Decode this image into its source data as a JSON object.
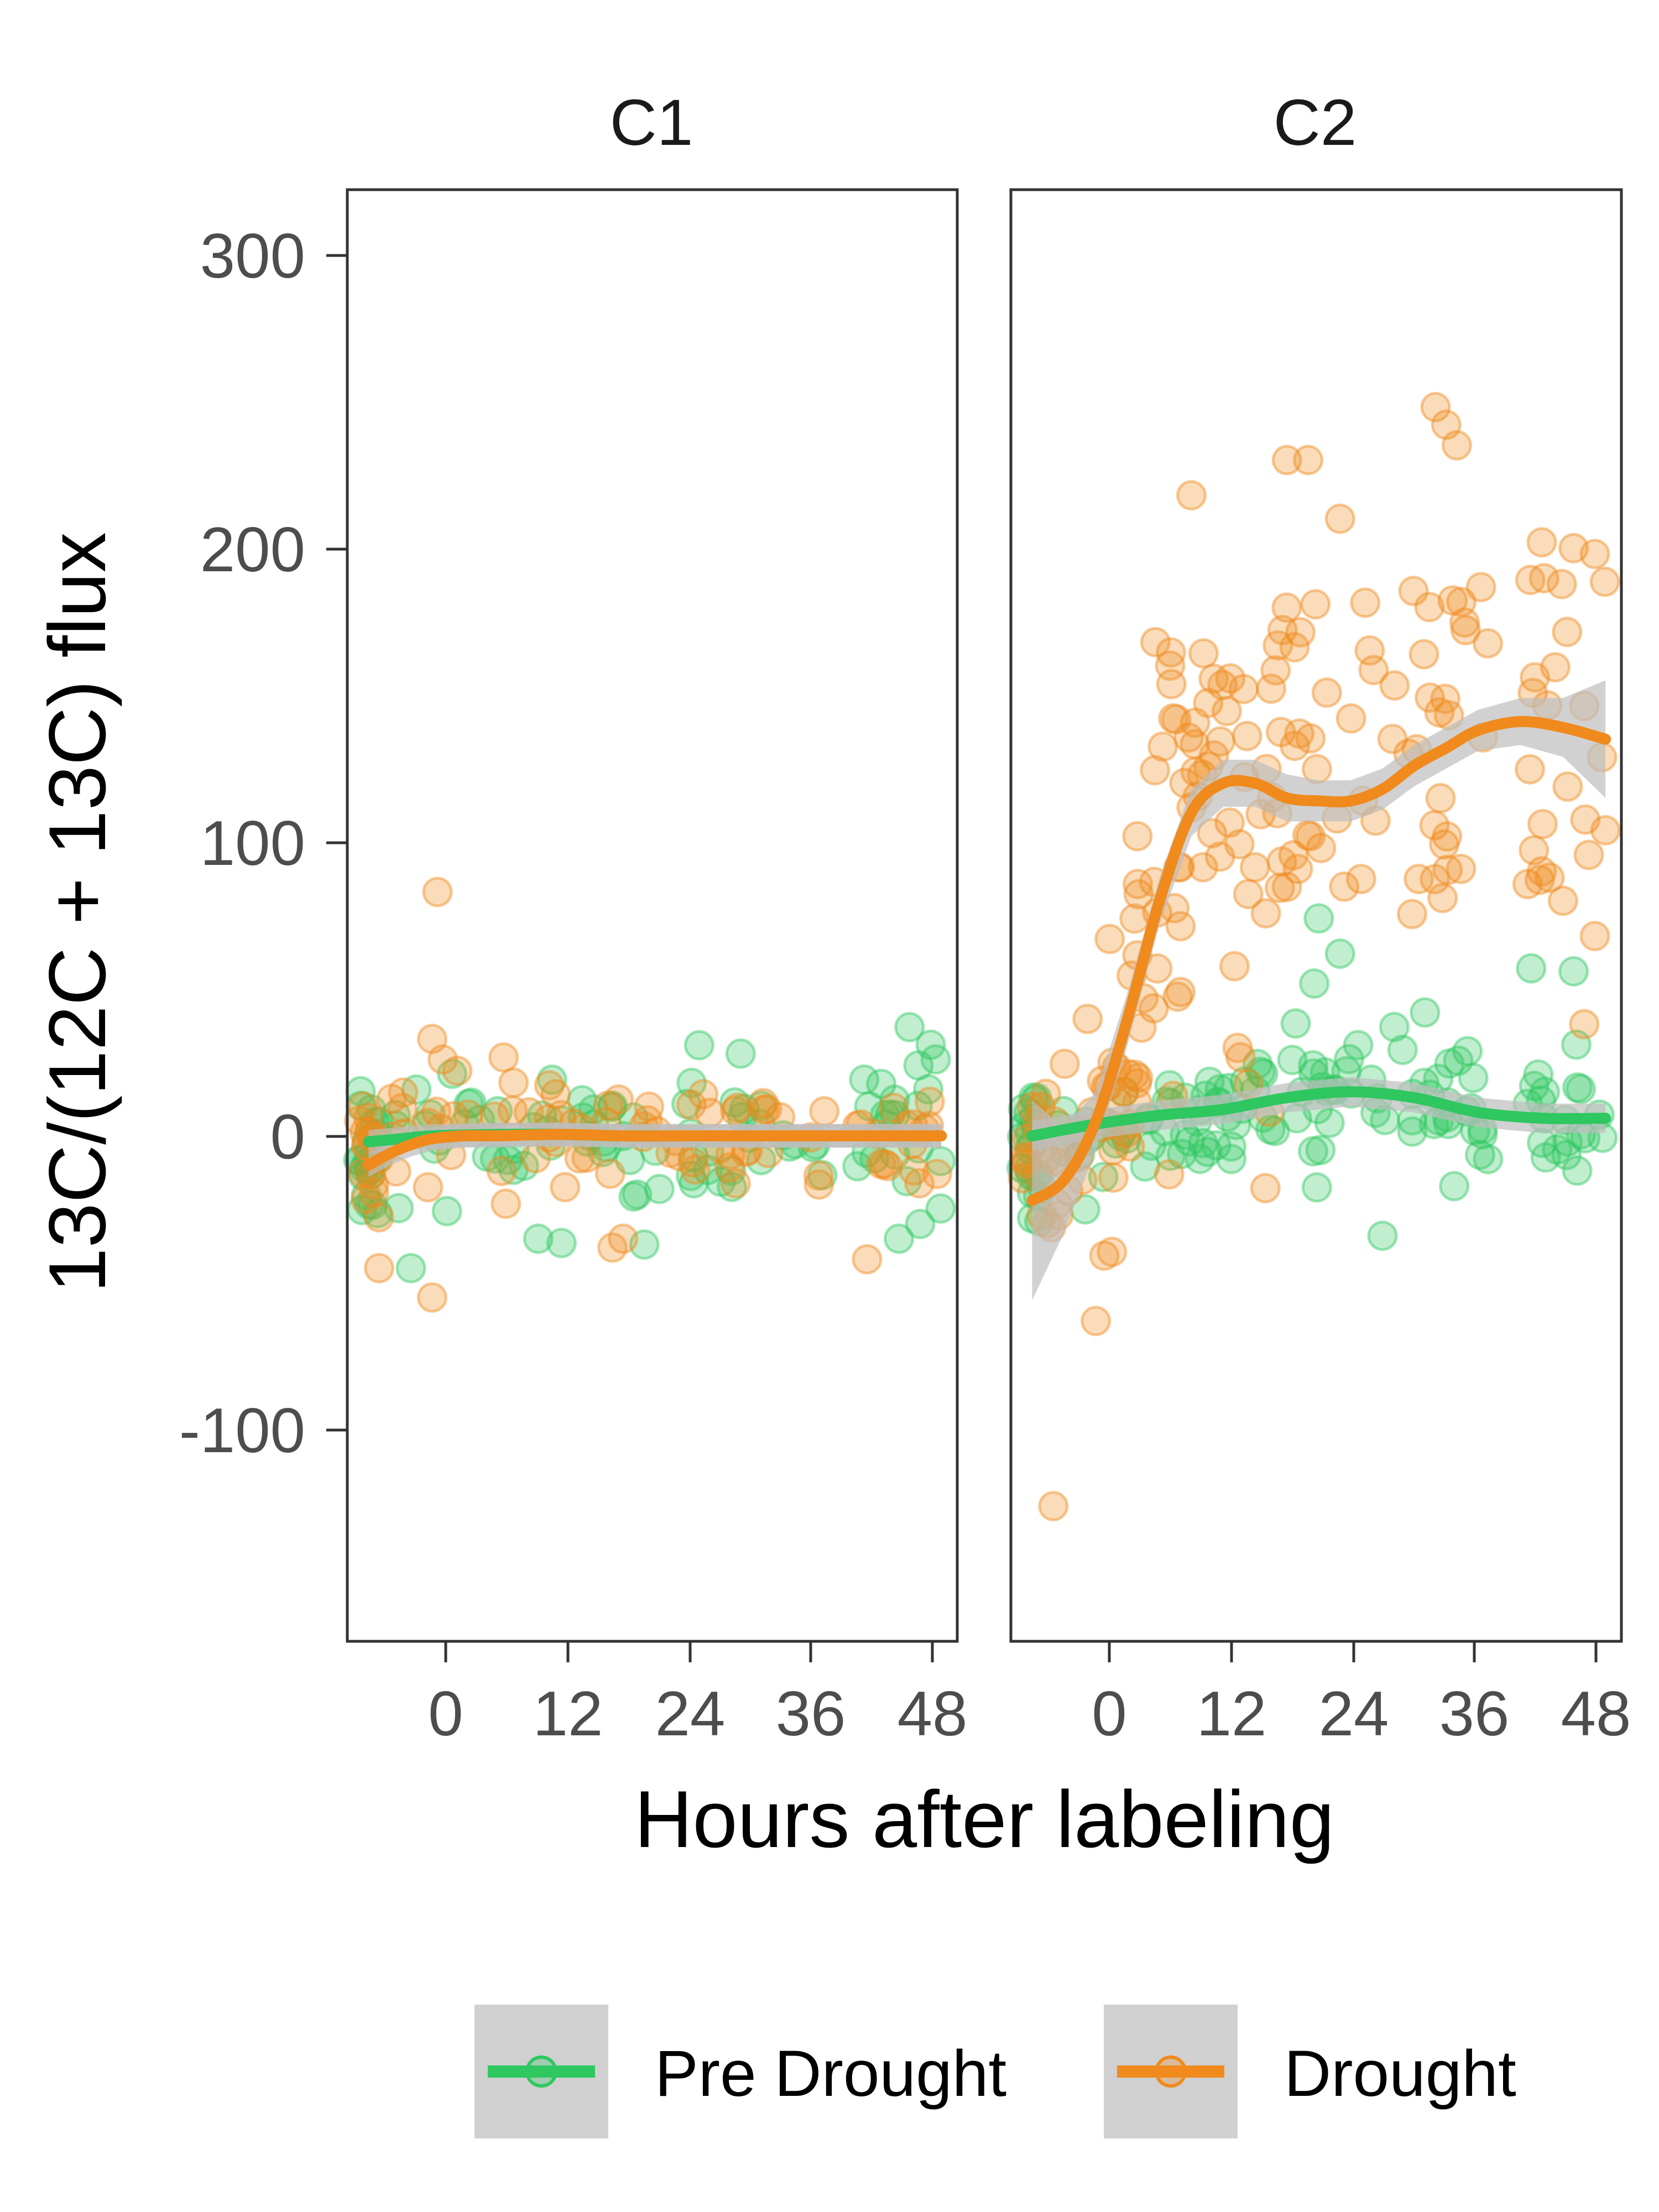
{
  "chart_data": {
    "type": "scatter",
    "xlabel": "Hours after labeling",
    "ylabel": "13C/(12C + 13C) flux",
    "xlim": [
      -8,
      49.5
    ],
    "ylim": [
      -172,
      322
    ],
    "x_ticks": [
      0,
      12,
      24,
      36,
      48
    ],
    "x_tick_labels": [
      "0",
      "12",
      "24",
      "36",
      "48"
    ],
    "y_ticks": [
      300,
      200,
      100,
      0,
      -100
    ],
    "y_tick_labels": [
      "300",
      "200",
      "100",
      "0",
      "-100"
    ],
    "grid": false,
    "legend_position": "bottom",
    "legend": [
      {
        "key": "pre",
        "label": "Pre Drought",
        "color": "#2ec760"
      },
      {
        "key": "drought",
        "label": "Drought",
        "color": "#f08a1c"
      }
    ],
    "ribbon_color": "#bdbdbd",
    "legend_key_fill": "#d0d0d0",
    "panels": [
      {
        "title": "C1",
        "series": [
          {
            "key": "pre",
            "name": "Pre Drought",
            "smooth": [
              [
                -6,
                -2
              ],
              [
                -3,
                -1
              ],
              [
                0,
                0
              ],
              [
                6,
                0.5
              ],
              [
                12,
                0.5
              ],
              [
                18,
                0
              ],
              [
                24,
                0
              ],
              [
                30,
                0
              ],
              [
                36,
                0
              ],
              [
                42,
                0
              ],
              [
                48,
                0
              ]
            ],
            "band": 4,
            "clusters": [
              [
                -7,
                -5,
                -2,
                12,
                24,
                26
              ],
              [
                -4,
                10,
                1,
                12,
                22,
                42
              ],
              [
                10,
                17,
                -1,
                11,
                16,
                34
              ],
              [
                17,
                28,
                -2,
                13,
                18,
                56
              ],
              [
                28,
                37,
                0,
                11,
                16,
                38
              ],
              [
                40,
                48,
                2,
                12,
                20,
                44
              ]
            ],
            "extra": [
              [
                -2,
                -45
              ],
              [
                10,
                -35
              ],
              [
                20,
                -37
              ],
              [
                44,
                -35
              ],
              [
                46,
                -30
              ],
              [
                45,
                37
              ],
              [
                47,
                31
              ]
            ]
          },
          {
            "key": "drought",
            "name": "Drought",
            "smooth": [
              [
                -6,
                -10
              ],
              [
                -4,
                -6
              ],
              [
                -2,
                -3
              ],
              [
                0,
                -1
              ],
              [
                3,
                0
              ],
              [
                6,
                0
              ],
              [
                12,
                0.5
              ],
              [
                18,
                0
              ],
              [
                24,
                0
              ],
              [
                30,
                0
              ],
              [
                36,
                0
              ],
              [
                42,
                0
              ],
              [
                48,
                0
              ]
            ],
            "band": 4,
            "clusters": [
              [
                -7,
                -5,
                -4,
                13,
                16,
                14
              ],
              [
                -4,
                10,
                2,
                12,
                22,
                34
              ],
              [
                10,
                17,
                0,
                11,
                14,
                22
              ],
              [
                17,
                28,
                0,
                11,
                15,
                26
              ],
              [
                28,
                37,
                0,
                11,
                16,
                22
              ],
              [
                40,
                48,
                2,
                10,
                16,
                34
              ]
            ],
            "extra": [
              [
                0.5,
                83
              ],
              [
                0,
                -55
              ],
              [
                -5,
                -45
              ],
              [
                17,
                -38
              ],
              [
                18,
                -35
              ],
              [
                41,
                -42
              ],
              [
                0,
                33
              ],
              [
                1,
                26
              ]
            ]
          }
        ]
      },
      {
        "title": "C2",
        "series": [
          {
            "key": "pre",
            "name": "Pre Drought",
            "smooth": [
              [
                -6,
                0
              ],
              [
                0,
                4
              ],
              [
                6,
                7
              ],
              [
                12,
                9
              ],
              [
                18,
                13
              ],
              [
                24,
                15
              ],
              [
                30,
                13
              ],
              [
                36,
                8
              ],
              [
                42,
                6
              ],
              [
                48,
                6
              ]
            ],
            "band": 5,
            "clusters": [
              [
                -7,
                -5,
                -5,
                12,
                22,
                18
              ],
              [
                -4,
                10,
                3,
                11,
                30,
                40
              ],
              [
                10,
                17,
                5,
                11,
                22,
                32
              ],
              [
                17,
                30,
                14,
                14,
                30,
                70
              ],
              [
                30,
                37,
                8,
                11,
                20,
                34
              ],
              [
                40,
                48,
                6,
                12,
                20,
                60
              ]
            ],
            "extra": [
              [
                -6,
                -28
              ],
              [
                -1,
                -25
              ],
              [
                27,
                -34
              ],
              [
                21,
                74
              ],
              [
                23,
                62
              ],
              [
                41,
                57
              ],
              [
                45,
                56
              ],
              [
                31,
                42
              ]
            ]
          },
          {
            "key": "drought",
            "name": "Drought",
            "smooth": [
              [
                -6,
                -22
              ],
              [
                -3,
                -15
              ],
              [
                0,
                5
              ],
              [
                3,
                40
              ],
              [
                6,
                80
              ],
              [
                9,
                110
              ],
              [
                12,
                120
              ],
              [
                15,
                120
              ],
              [
                18,
                115
              ],
              [
                21,
                114
              ],
              [
                24,
                114
              ],
              [
                27,
                118
              ],
              [
                30,
                126
              ],
              [
                33,
                132
              ],
              [
                36,
                138
              ],
              [
                40,
                141
              ],
              [
                44,
                139
              ],
              [
                48,
                135
              ]
            ],
            "band": 10,
            "band_pts": [
              [
                -6,
                34
              ],
              [
                -3,
                18
              ],
              [
                0,
                10
              ],
              [
                3,
                9
              ],
              [
                6,
                8
              ],
              [
                9,
                8
              ],
              [
                12,
                8
              ],
              [
                15,
                8
              ],
              [
                18,
                8
              ],
              [
                21,
                7
              ],
              [
                24,
                7
              ],
              [
                27,
                7
              ],
              [
                30,
                7
              ],
              [
                33,
                7
              ],
              [
                36,
                7
              ],
              [
                40,
                8
              ],
              [
                44,
                10
              ],
              [
                48,
                20
              ]
            ],
            "clusters": [
              [
                -7,
                -1,
                -6,
                12,
                28,
                18
              ],
              [
                -1,
                4,
                16,
                22,
                24,
                26
              ],
              [
                3,
                8,
                72,
                35,
                22,
                36
              ],
              [
                7,
                13,
                124,
                42,
                26,
                44
              ],
              [
                13,
                17,
                60,
                55,
                18,
                18
              ],
              [
                17,
                26,
                130,
                45,
                28,
                56
              ],
              [
                26,
                37,
                130,
                55,
                30,
                58
              ],
              [
                40,
                48,
                130,
                55,
                20,
                60
              ]
            ],
            "extra": [
              [
                -4,
                -126
              ],
              [
                0,
                -63
              ],
              [
                7,
                160
              ],
              [
                9,
                218
              ],
              [
                18,
                230
              ],
              [
                20,
                230
              ],
              [
                23,
                210
              ],
              [
                32,
                248
              ],
              [
                33,
                242
              ],
              [
                34,
                235
              ],
              [
                42,
                202
              ],
              [
                45,
                200
              ],
              [
                47,
                198
              ],
              [
                48,
                104
              ],
              [
                47,
                68
              ],
              [
                46,
                38
              ],
              [
                44,
                80
              ],
              [
                42,
                90
              ]
            ]
          }
        ]
      }
    ]
  }
}
